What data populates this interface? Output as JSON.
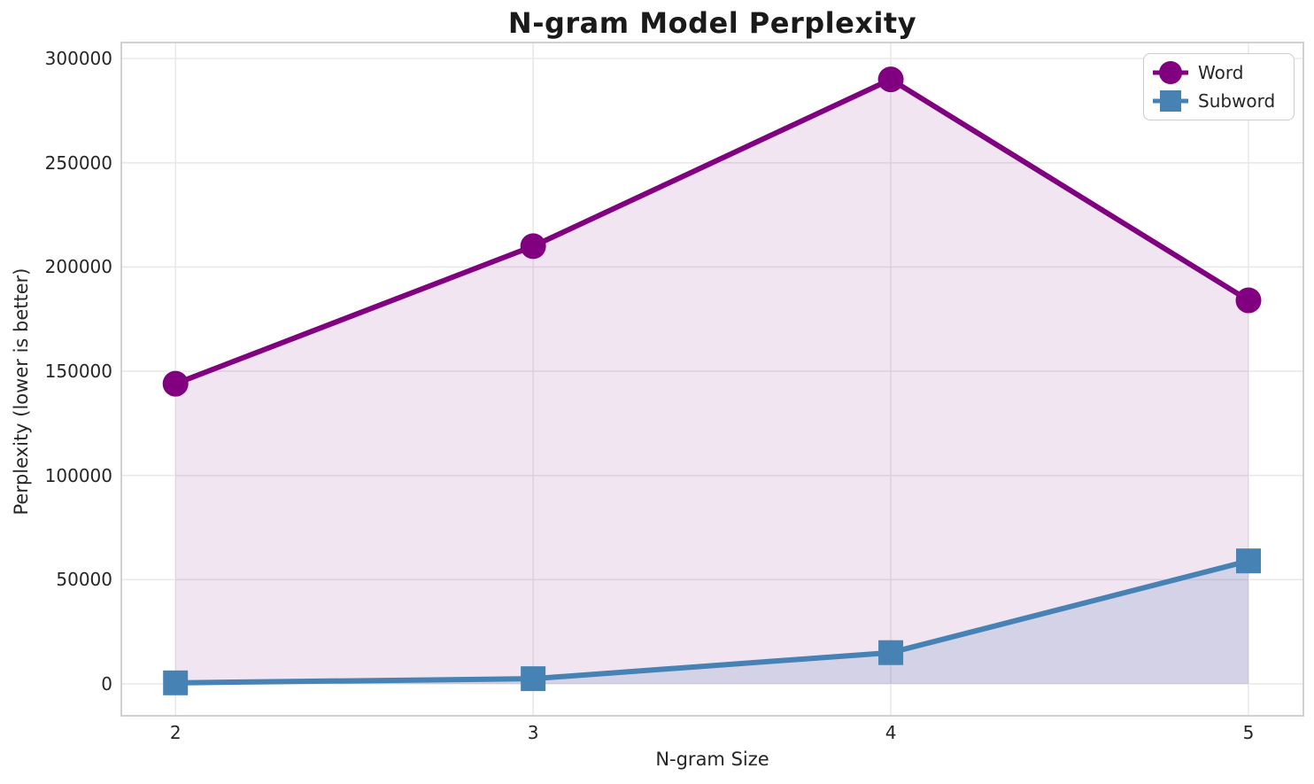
{
  "chart_data": {
    "type": "line",
    "title": "N-gram Model Perplexity",
    "xlabel": "N-gram Size",
    "ylabel": "Perplexity (lower is better)",
    "x": [
      2,
      3,
      4,
      5
    ],
    "series": [
      {
        "name": "Word",
        "marker": "circle",
        "color": "#800080",
        "values": [
          144000,
          210000,
          290000,
          184000
        ],
        "fill_opacity": 0.1
      },
      {
        "name": "Subword",
        "marker": "square",
        "color": "#4682B4",
        "values": [
          500,
          2500,
          15000,
          59000
        ],
        "fill_opacity": 0.18
      }
    ],
    "fill_to_baseline": 0,
    "xticks": [
      2,
      3,
      4,
      5
    ],
    "yticks": [
      0,
      50000,
      100000,
      150000,
      200000,
      250000,
      300000
    ],
    "xlim": [
      1.8485,
      5.1535
    ],
    "ylim": [
      -15300,
      307700
    ],
    "grid": true,
    "legend_position": "upper right",
    "line_width": 6,
    "marker_size": 29,
    "colors": {
      "grid": "#e9e9e9",
      "spine": "#cccccc",
      "text": "#262626",
      "title": "#1a1a1a",
      "background": "#ffffff"
    }
  }
}
